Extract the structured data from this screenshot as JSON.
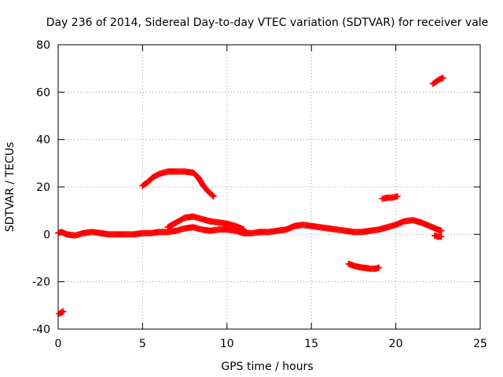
{
  "chart_data": {
    "type": "scatter",
    "title": "Day 236 of 2014, Sidereal Day-to-day VTEC variation (SDTVAR) for receiver vale",
    "xlabel": "GPS time / hours",
    "ylabel": "SDTVAR / TECUs",
    "xlim": [
      0,
      25
    ],
    "ylim": [
      -40,
      80
    ],
    "xticks": [
      0,
      5,
      10,
      15,
      20,
      25
    ],
    "yticks": [
      -40,
      -20,
      0,
      20,
      40,
      60,
      80
    ],
    "grid": true,
    "marker": "cross",
    "color": "#ff0000",
    "series": [
      {
        "name": "isolated-low",
        "points": [
          [
            0.05,
            -33.5
          ],
          [
            0.2,
            -33.0
          ],
          [
            0.3,
            -32.5
          ]
        ]
      },
      {
        "name": "baseline",
        "points": [
          [
            0.0,
            0.5
          ],
          [
            0.2,
            1.0
          ],
          [
            0.5,
            0.0
          ],
          [
            1.0,
            -0.5
          ],
          [
            1.5,
            0.5
          ],
          [
            2.0,
            1.0
          ],
          [
            2.5,
            0.5
          ],
          [
            3.0,
            0.0
          ],
          [
            3.5,
            0.0
          ],
          [
            4.0,
            0.0
          ],
          [
            4.5,
            0.0
          ],
          [
            5.0,
            0.5
          ],
          [
            5.5,
            0.5
          ],
          [
            6.0,
            1.0
          ],
          [
            6.5,
            1.0
          ],
          [
            7.0,
            1.5
          ],
          [
            7.5,
            2.5
          ],
          [
            8.0,
            3.0
          ],
          [
            8.5,
            2.0
          ],
          [
            9.0,
            1.5
          ],
          [
            9.5,
            2.0
          ],
          [
            10.0,
            2.0
          ],
          [
            10.5,
            1.5
          ],
          [
            11.0,
            0.5
          ],
          [
            11.5,
            0.5
          ],
          [
            12.0,
            1.0
          ],
          [
            12.5,
            1.0
          ],
          [
            13.0,
            1.5
          ],
          [
            13.5,
            2.0
          ],
          [
            14.0,
            3.5
          ],
          [
            14.5,
            4.0
          ],
          [
            15.0,
            3.5
          ],
          [
            15.5,
            3.0
          ],
          [
            16.0,
            2.5
          ],
          [
            16.5,
            2.0
          ],
          [
            17.0,
            1.5
          ],
          [
            17.5,
            1.0
          ],
          [
            18.0,
            1.0
          ],
          [
            18.5,
            1.5
          ],
          [
            19.0,
            2.0
          ],
          [
            19.5,
            3.0
          ],
          [
            20.0,
            4.0
          ],
          [
            20.5,
            5.5
          ],
          [
            21.0,
            6.0
          ],
          [
            21.5,
            5.0
          ],
          [
            22.0,
            3.5
          ],
          [
            22.5,
            2.0
          ],
          [
            22.7,
            1.5
          ]
        ]
      },
      {
        "name": "upper-trace",
        "points": [
          [
            6.5,
            3.0
          ],
          [
            7.0,
            5.0
          ],
          [
            7.5,
            7.0
          ],
          [
            8.0,
            7.5
          ],
          [
            8.5,
            6.5
          ],
          [
            9.0,
            5.5
          ],
          [
            9.5,
            5.0
          ],
          [
            10.0,
            4.5
          ],
          [
            10.5,
            3.5
          ],
          [
            11.0,
            2.0
          ]
        ]
      },
      {
        "name": "hump",
        "points": [
          [
            5.0,
            20.5
          ],
          [
            5.3,
            22.0
          ],
          [
            5.6,
            24.0
          ],
          [
            6.0,
            25.5
          ],
          [
            6.5,
            26.5
          ],
          [
            7.0,
            26.5
          ],
          [
            7.5,
            26.5
          ],
          [
            8.0,
            26.0
          ],
          [
            8.3,
            24.0
          ],
          [
            8.6,
            20.5
          ],
          [
            8.9,
            18.0
          ],
          [
            9.2,
            16.0
          ]
        ]
      },
      {
        "name": "negative-dip",
        "points": [
          [
            17.2,
            -12.5
          ],
          [
            17.6,
            -13.5
          ],
          [
            18.0,
            -14.0
          ],
          [
            18.5,
            -14.5
          ],
          [
            18.8,
            -14.5
          ],
          [
            19.0,
            -14.0
          ]
        ]
      },
      {
        "name": "short-segment",
        "points": [
          [
            19.2,
            15.0
          ],
          [
            19.5,
            15.5
          ],
          [
            19.8,
            15.5
          ],
          [
            20.1,
            16.0
          ]
        ]
      },
      {
        "name": "drop-at-end",
        "points": [
          [
            22.3,
            -0.5
          ],
          [
            22.5,
            -1.0
          ],
          [
            22.7,
            -1.0
          ]
        ]
      },
      {
        "name": "high-segment",
        "points": [
          [
            22.2,
            63.5
          ],
          [
            22.4,
            64.5
          ],
          [
            22.6,
            65.5
          ],
          [
            22.8,
            66.0
          ]
        ]
      }
    ]
  }
}
